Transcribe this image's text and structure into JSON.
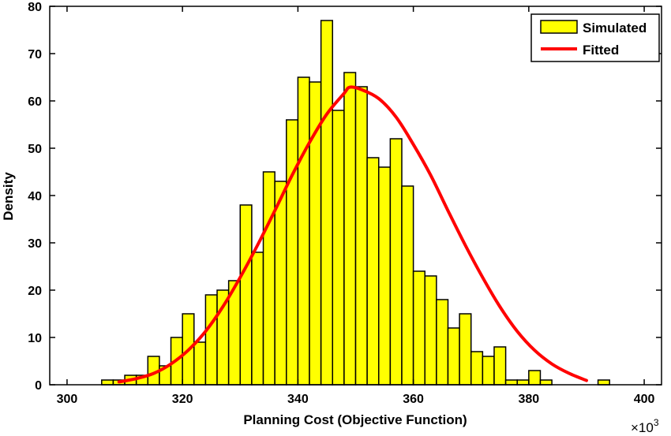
{
  "chart_data": {
    "type": "bar",
    "title": "",
    "xlabel": "Planning Cost (Objective Function)",
    "ylabel": "Density",
    "x_multiplier": "×10",
    "x_multiplier_exp": "3",
    "xlim": [
      297,
      403
    ],
    "ylim": [
      0,
      80
    ],
    "x_ticks": [
      300,
      320,
      340,
      360,
      380,
      400
    ],
    "y_ticks": [
      0,
      10,
      20,
      30,
      40,
      50,
      60,
      70,
      80
    ],
    "grid": false,
    "legend_position": "top-right",
    "bin_width": 2,
    "bin_starts": [
      306,
      308,
      310,
      312,
      314,
      316,
      318,
      320,
      322,
      324,
      326,
      328,
      330,
      332,
      334,
      336,
      338,
      340,
      342,
      344,
      346,
      348,
      350,
      352,
      354,
      356,
      358,
      360,
      362,
      364,
      366,
      368,
      370,
      372,
      374,
      376,
      378,
      380,
      382,
      384,
      386,
      388,
      390,
      392,
      394
    ],
    "series": [
      {
        "name": "Simulated",
        "kind": "bar",
        "color": "#ffff00",
        "values": [
          1,
          1,
          2,
          2,
          6,
          4,
          10,
          15,
          9,
          19,
          20,
          22,
          38,
          28,
          45,
          43,
          56,
          65,
          64,
          77,
          58,
          66,
          63,
          48,
          46,
          52,
          42,
          24,
          23,
          18,
          12,
          15,
          7,
          6,
          8,
          1,
          1,
          3,
          1,
          0,
          0,
          0,
          0,
          1,
          0
        ]
      },
      {
        "name": "Fitted",
        "kind": "line",
        "color": "#ff0000",
        "x": [
          309,
          312,
          315,
          318,
          321,
          324,
          327,
          330,
          333,
          336,
          339,
          342,
          345,
          348,
          349,
          351,
          354,
          357,
          360,
          363,
          366,
          369,
          372,
          375,
          378,
          381,
          384,
          387,
          390
        ],
        "values": [
          0.6,
          1.3,
          2.4,
          4.4,
          7.3,
          11.3,
          16.5,
          22.7,
          29.5,
          36.8,
          44.3,
          51.2,
          57.2,
          61.6,
          62.9,
          62.4,
          60.5,
          56.6,
          50.8,
          44.3,
          36.8,
          29.5,
          22.7,
          16.5,
          11.3,
          7.3,
          4.4,
          2.4,
          0.9
        ]
      }
    ]
  }
}
